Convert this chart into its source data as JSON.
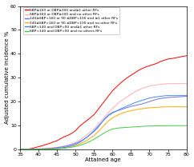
{
  "xlabel": "Attained age",
  "ylabel": "Adjusted cumulative incidence %",
  "xlim": [
    35,
    80
  ],
  "ylim": [
    0,
    60
  ],
  "xticks": [
    35,
    40,
    45,
    50,
    55,
    60,
    65,
    70,
    75,
    80
  ],
  "yticks": [
    0,
    10,
    20,
    30,
    40,
    50,
    60
  ],
  "legend_entries": [
    "SBP≥160 or DBP≥100 and≥1 other RFs",
    "SBP≥160 or DBP≥100 and no other RFs",
    "140≥SBP<160 or 90 ≤DBP<100 and ≥1 other RFs",
    "140≤SBP<160 or 90 ≤DBP<100 and no other RFs",
    "SBP<140 and DBP<90 and≥1 other RFs",
    "SBP<140 and DBP<90 and no others RFs"
  ],
  "line_colors": [
    "#ff0000",
    "#ffb0b0",
    "#7070ee",
    "#ffaa00",
    "#4488ff",
    "#44cc44"
  ],
  "series": {
    "red": [
      [
        35,
        0
      ],
      [
        37,
        0.1
      ],
      [
        38,
        0.3
      ],
      [
        39,
        0.7
      ],
      [
        40,
        1.1
      ],
      [
        41,
        1.5
      ],
      [
        42,
        2.0
      ],
      [
        43,
        2.5
      ],
      [
        44,
        3.1
      ],
      [
        45,
        3.6
      ],
      [
        46,
        4.5
      ],
      [
        47,
        5.3
      ],
      [
        48,
        5.9
      ],
      [
        49,
        6.7
      ],
      [
        50,
        7.8
      ],
      [
        51,
        9.5
      ],
      [
        52,
        10.8
      ],
      [
        53,
        12.0
      ],
      [
        54,
        13.2
      ],
      [
        55,
        14.5
      ],
      [
        56,
        16.5
      ],
      [
        57,
        18.5
      ],
      [
        58,
        20.5
      ],
      [
        59,
        22.5
      ],
      [
        60,
        24.5
      ],
      [
        61,
        26.0
      ],
      [
        62,
        27.5
      ],
      [
        63,
        28.8
      ],
      [
        64,
        30.0
      ],
      [
        65,
        31.0
      ],
      [
        66,
        32.0
      ],
      [
        67,
        33.0
      ],
      [
        68,
        33.8
      ],
      [
        69,
        34.5
      ],
      [
        70,
        35.0
      ],
      [
        71,
        35.5
      ],
      [
        72,
        36.0
      ],
      [
        73,
        36.8
      ],
      [
        74,
        37.3
      ],
      [
        75,
        37.8
      ],
      [
        76,
        38.0
      ],
      [
        77,
        38.3
      ],
      [
        78,
        38.6
      ],
      [
        79,
        38.9
      ],
      [
        80,
        39.2
      ]
    ],
    "pink": [
      [
        35,
        0
      ],
      [
        37,
        0.05
      ],
      [
        38,
        0.1
      ],
      [
        39,
        0.15
      ],
      [
        40,
        0.25
      ],
      [
        41,
        0.35
      ],
      [
        42,
        0.45
      ],
      [
        43,
        0.55
      ],
      [
        44,
        0.7
      ],
      [
        45,
        0.85
      ],
      [
        46,
        1.1
      ],
      [
        47,
        1.4
      ],
      [
        48,
        1.8
      ],
      [
        49,
        2.3
      ],
      [
        50,
        3.0
      ],
      [
        51,
        3.8
      ],
      [
        52,
        4.8
      ],
      [
        53,
        6.0
      ],
      [
        54,
        7.2
      ],
      [
        55,
        8.5
      ],
      [
        56,
        10.2
      ],
      [
        57,
        12.0
      ],
      [
        58,
        13.8
      ],
      [
        59,
        15.5
      ],
      [
        60,
        17.2
      ],
      [
        61,
        18.5
      ],
      [
        62,
        20.0
      ],
      [
        63,
        21.0
      ],
      [
        64,
        22.0
      ],
      [
        65,
        23.0
      ],
      [
        66,
        24.0
      ],
      [
        67,
        24.8
      ],
      [
        68,
        25.5
      ],
      [
        69,
        26.0
      ],
      [
        70,
        26.5
      ],
      [
        71,
        26.8
      ],
      [
        72,
        27.0
      ],
      [
        73,
        27.2
      ],
      [
        74,
        27.4
      ],
      [
        75,
        27.5
      ],
      [
        76,
        27.5
      ],
      [
        77,
        27.5
      ],
      [
        78,
        27.5
      ],
      [
        79,
        27.5
      ],
      [
        80,
        27.5
      ]
    ],
    "darkblue": [
      [
        35,
        0
      ],
      [
        37,
        0.02
      ],
      [
        38,
        0.05
      ],
      [
        39,
        0.08
      ],
      [
        40,
        0.12
      ],
      [
        41,
        0.18
      ],
      [
        42,
        0.25
      ],
      [
        43,
        0.35
      ],
      [
        44,
        0.5
      ],
      [
        45,
        0.7
      ],
      [
        46,
        0.9
      ],
      [
        47,
        1.2
      ],
      [
        48,
        1.5
      ],
      [
        49,
        2.0
      ],
      [
        50,
        2.5
      ],
      [
        51,
        3.2
      ],
      [
        52,
        4.0
      ],
      [
        53,
        5.0
      ],
      [
        54,
        6.2
      ],
      [
        55,
        7.5
      ],
      [
        56,
        9.0
      ],
      [
        57,
        11.0
      ],
      [
        58,
        13.0
      ],
      [
        59,
        14.5
      ],
      [
        60,
        15.5
      ],
      [
        61,
        16.0
      ],
      [
        62,
        16.5
      ],
      [
        63,
        17.0
      ],
      [
        64,
        17.5
      ],
      [
        65,
        18.0
      ],
      [
        66,
        18.3
      ],
      [
        67,
        18.7
      ],
      [
        68,
        19.0
      ],
      [
        69,
        19.5
      ],
      [
        70,
        20.0
      ],
      [
        71,
        20.5
      ],
      [
        72,
        21.0
      ],
      [
        73,
        21.3
      ],
      [
        74,
        21.5
      ],
      [
        75,
        21.7
      ],
      [
        76,
        21.8
      ],
      [
        77,
        21.9
      ],
      [
        78,
        22.0
      ],
      [
        79,
        22.1
      ],
      [
        80,
        22.2
      ]
    ],
    "orange": [
      [
        35,
        0
      ],
      [
        37,
        0.01
      ],
      [
        38,
        0.03
      ],
      [
        39,
        0.05
      ],
      [
        40,
        0.08
      ],
      [
        41,
        0.12
      ],
      [
        42,
        0.17
      ],
      [
        43,
        0.22
      ],
      [
        44,
        0.3
      ],
      [
        45,
        0.4
      ],
      [
        46,
        0.55
      ],
      [
        47,
        0.75
      ],
      [
        48,
        1.0
      ],
      [
        49,
        1.3
      ],
      [
        50,
        1.7
      ],
      [
        51,
        2.2
      ],
      [
        52,
        2.9
      ],
      [
        53,
        3.7
      ],
      [
        54,
        4.7
      ],
      [
        55,
        5.8
      ],
      [
        56,
        7.2
      ],
      [
        57,
        8.8
      ],
      [
        58,
        10.5
      ],
      [
        59,
        12.0
      ],
      [
        60,
        13.2
      ],
      [
        61,
        14.0
      ],
      [
        62,
        14.8
      ],
      [
        63,
        15.4
      ],
      [
        64,
        15.8
      ],
      [
        65,
        16.2
      ],
      [
        66,
        16.5
      ],
      [
        67,
        16.8
      ],
      [
        68,
        17.0
      ],
      [
        69,
        17.2
      ],
      [
        70,
        17.4
      ],
      [
        71,
        17.5
      ],
      [
        72,
        17.6
      ],
      [
        73,
        17.7
      ],
      [
        74,
        17.75
      ],
      [
        75,
        17.8
      ],
      [
        76,
        17.8
      ],
      [
        77,
        17.8
      ],
      [
        78,
        17.8
      ],
      [
        79,
        17.8
      ],
      [
        80,
        17.8
      ]
    ],
    "blue": [
      [
        35,
        0
      ],
      [
        37,
        0.01
      ],
      [
        38,
        0.03
      ],
      [
        39,
        0.05
      ],
      [
        40,
        0.08
      ],
      [
        41,
        0.12
      ],
      [
        42,
        0.17
      ],
      [
        43,
        0.22
      ],
      [
        44,
        0.3
      ],
      [
        45,
        0.4
      ],
      [
        46,
        0.55
      ],
      [
        47,
        0.8
      ],
      [
        48,
        1.1
      ],
      [
        49,
        1.5
      ],
      [
        50,
        2.0
      ],
      [
        51,
        2.8
      ],
      [
        52,
        3.8
      ],
      [
        53,
        5.0
      ],
      [
        54,
        6.3
      ],
      [
        55,
        7.8
      ],
      [
        56,
        9.5
      ],
      [
        57,
        11.2
      ],
      [
        58,
        12.8
      ],
      [
        59,
        14.2
      ],
      [
        60,
        15.2
      ],
      [
        61,
        16.0
      ],
      [
        62,
        16.8
      ],
      [
        63,
        17.5
      ],
      [
        64,
        18.2
      ],
      [
        65,
        18.8
      ],
      [
        66,
        19.5
      ],
      [
        67,
        20.0
      ],
      [
        68,
        20.5
      ],
      [
        69,
        21.0
      ],
      [
        70,
        21.5
      ],
      [
        71,
        21.8
      ],
      [
        72,
        22.0
      ],
      [
        73,
        22.2
      ],
      [
        74,
        22.4
      ],
      [
        75,
        22.5
      ],
      [
        76,
        22.5
      ],
      [
        77,
        22.5
      ],
      [
        78,
        22.5
      ],
      [
        79,
        22.5
      ],
      [
        80,
        22.5
      ]
    ],
    "green": [
      [
        35,
        0
      ],
      [
        37,
        0.01
      ],
      [
        38,
        0.02
      ],
      [
        39,
        0.03
      ],
      [
        40,
        0.05
      ],
      [
        41,
        0.07
      ],
      [
        42,
        0.1
      ],
      [
        43,
        0.13
      ],
      [
        44,
        0.18
      ],
      [
        45,
        0.25
      ],
      [
        46,
        0.35
      ],
      [
        47,
        0.48
      ],
      [
        48,
        0.65
      ],
      [
        49,
        0.9
      ],
      [
        50,
        1.2
      ],
      [
        51,
        1.6
      ],
      [
        52,
        2.1
      ],
      [
        53,
        2.7
      ],
      [
        54,
        3.4
      ],
      [
        55,
        4.2
      ],
      [
        56,
        5.1
      ],
      [
        57,
        6.1
      ],
      [
        58,
        7.1
      ],
      [
        59,
        7.9
      ],
      [
        60,
        8.5
      ],
      [
        61,
        8.8
      ],
      [
        62,
        9.0
      ],
      [
        63,
        9.1
      ],
      [
        64,
        9.2
      ],
      [
        65,
        9.3
      ],
      [
        66,
        9.4
      ],
      [
        67,
        9.5
      ],
      [
        68,
        9.6
      ],
      [
        69,
        9.7
      ],
      [
        70,
        9.75
      ],
      [
        71,
        9.8
      ],
      [
        72,
        9.82
      ],
      [
        73,
        9.84
      ],
      [
        74,
        9.86
      ],
      [
        75,
        9.88
      ],
      [
        76,
        9.9
      ],
      [
        77,
        9.91
      ],
      [
        78,
        9.92
      ],
      [
        79,
        9.93
      ],
      [
        80,
        9.95
      ]
    ]
  }
}
